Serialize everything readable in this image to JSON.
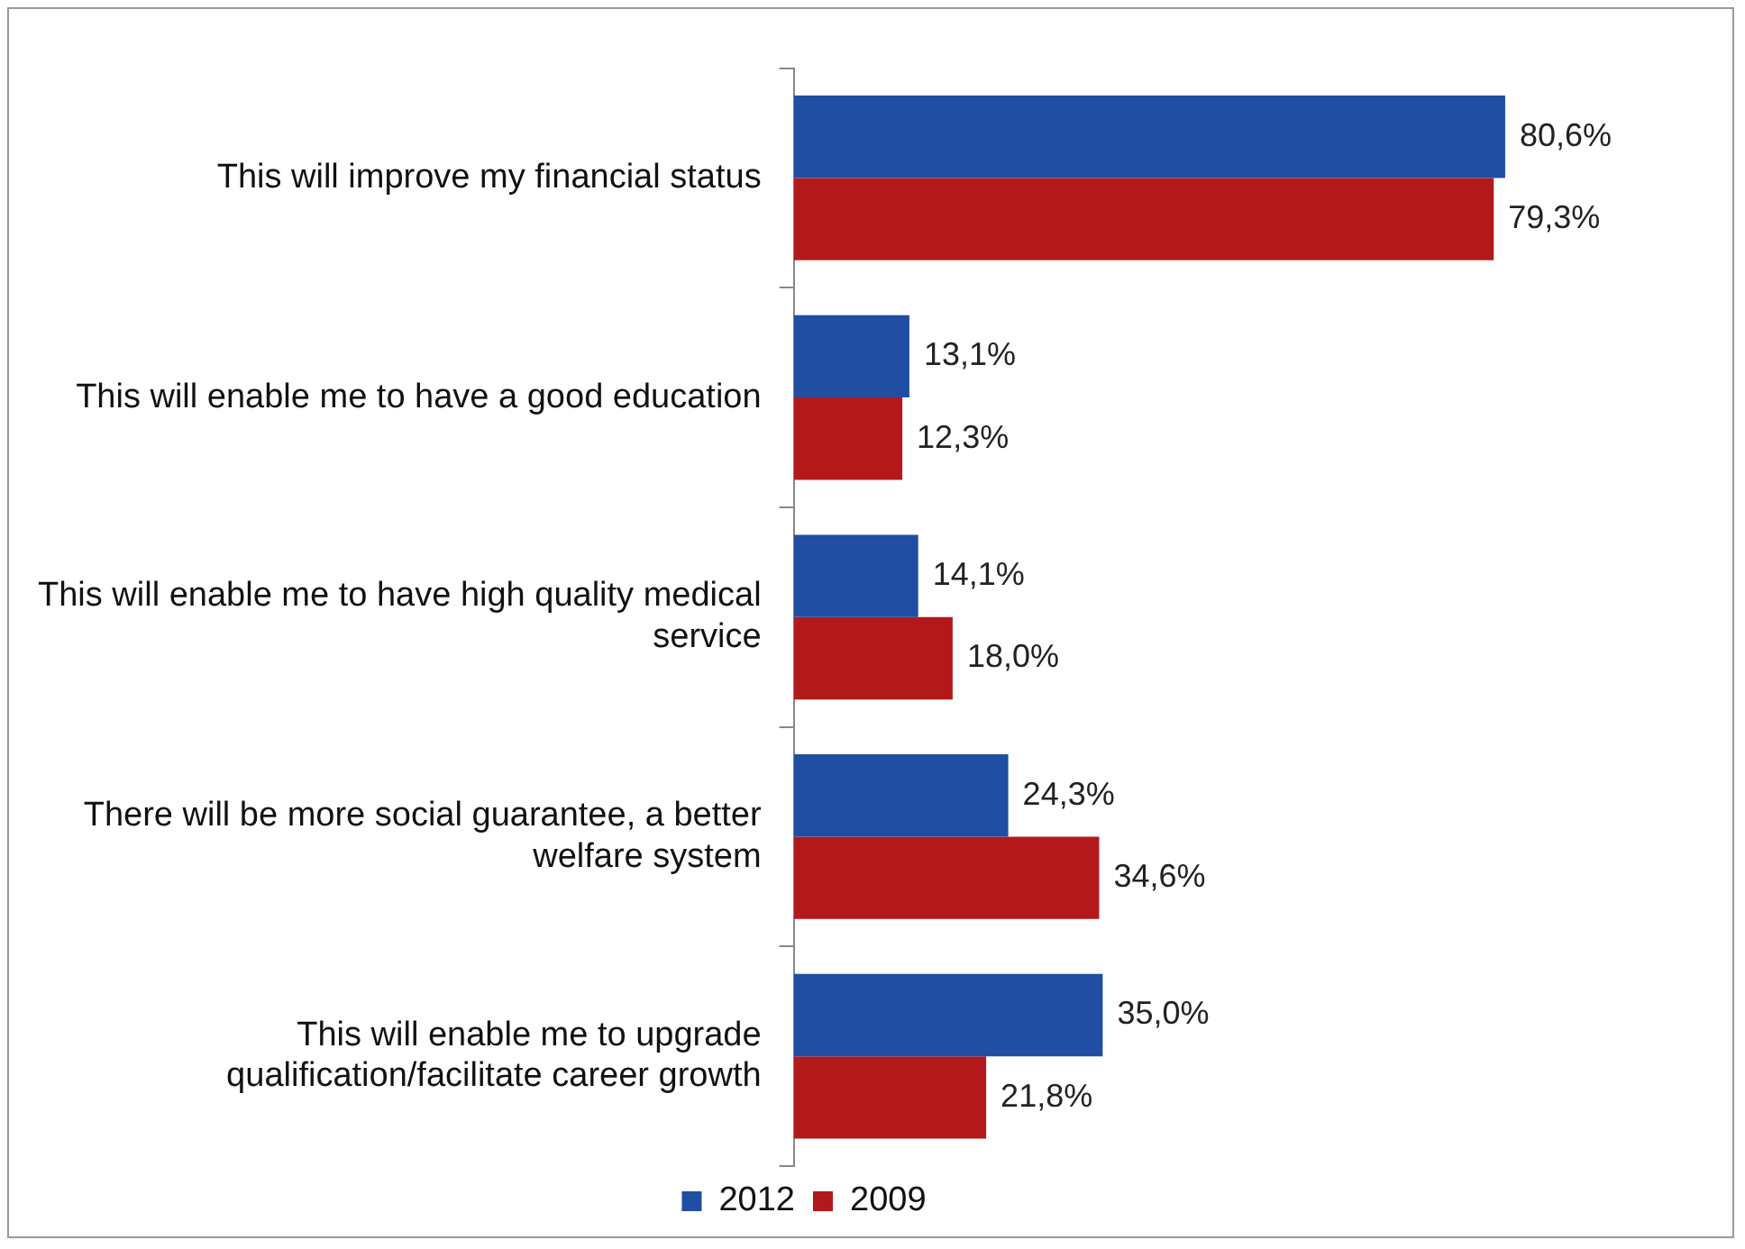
{
  "chart_data": {
    "type": "bar",
    "orientation": "horizontal",
    "legend": "bottom",
    "categories": [
      "This will improve my financial status",
      "This will enable me to have a good education",
      "This will enable me to have high quality medical service",
      "There will be more social guarantee, a better welfare system",
      "This will enable me to upgrade qualification/facilitate career growth"
    ],
    "series": [
      {
        "name": "2012",
        "color": "#1f4ea3",
        "values": [
          80.6,
          13.1,
          14.1,
          24.3,
          35.0
        ],
        "value_labels": [
          "80,6%",
          "13,1%",
          "14,1%",
          "24,3%",
          "35,0%"
        ]
      },
      {
        "name": "2009",
        "color": "#b3191b",
        "values": [
          79.3,
          12.3,
          18.0,
          34.6,
          21.8
        ],
        "value_labels": [
          "79,3%",
          "12,3%",
          "18,0%",
          "34,6%",
          "21,8%"
        ]
      }
    ]
  }
}
